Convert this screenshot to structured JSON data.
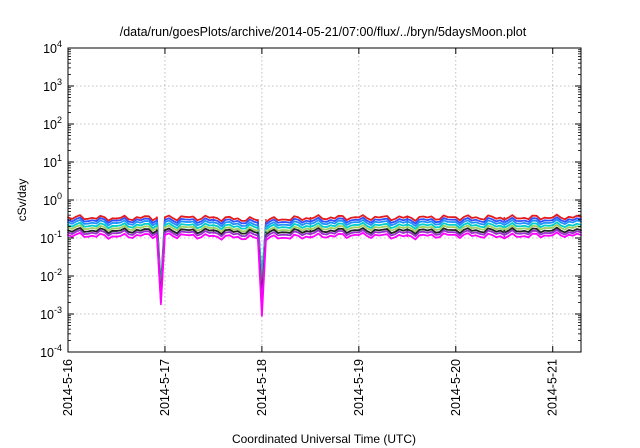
{
  "chart_data": {
    "type": "line",
    "title": "/data/run/goesPlots/archive/2014-05-21/07:00/flux/../bryn/5daysMoon.plot",
    "xlabel": "Coordinated Universal Time (UTC)",
    "ylabel": "cSv/day",
    "y_scale": "log",
    "ylim": [
      0.0001,
      10000
    ],
    "y_ticks": [
      {
        "value": 0.0001,
        "base": "10",
        "exp": "-4"
      },
      {
        "value": 0.001,
        "base": "10",
        "exp": "-3"
      },
      {
        "value": 0.01,
        "base": "10",
        "exp": "-2"
      },
      {
        "value": 0.1,
        "base": "10",
        "exp": "-1"
      },
      {
        "value": 1,
        "base": "10",
        "exp": "0"
      },
      {
        "value": 10,
        "base": "10",
        "exp": "1"
      },
      {
        "value": 100,
        "base": "10",
        "exp": "2"
      },
      {
        "value": 1000,
        "base": "10",
        "exp": "3"
      },
      {
        "value": 10000,
        "base": "10",
        "exp": "4"
      }
    ],
    "x_range_days": [
      "2014-05-16",
      "2014-05-21 07:00"
    ],
    "x_ticks": [
      "2014-5-16",
      "2014-5-17",
      "2014-5-18",
      "2014-5-19",
      "2014-5-20",
      "2014-5-21"
    ],
    "grid": true,
    "legend": "none",
    "x": [
      "2014-05-16 00:00",
      "2014-05-16 12:00",
      "2014-05-16 22:00",
      "2014-05-16 23:00",
      "2014-05-17 00:00",
      "2014-05-17 12:00",
      "2014-05-17 23:00",
      "2014-05-18 00:00",
      "2014-05-18 01:00",
      "2014-05-18 12:00",
      "2014-05-19 00:00",
      "2014-05-19 12:00",
      "2014-05-20 00:00",
      "2014-05-20 12:00",
      "2014-05-21 00:00",
      "2014-05-21 07:00"
    ],
    "series": [
      {
        "color": "#e41a1c",
        "values": [
          0.35,
          0.33,
          0.35,
          0.005,
          0.35,
          0.34,
          0.3,
          0.005,
          0.3,
          0.34,
          0.35,
          0.34,
          0.35,
          0.34,
          0.35,
          0.36
        ]
      },
      {
        "color": "#3050ff",
        "values": [
          0.3,
          0.29,
          0.3,
          0.0045,
          0.3,
          0.29,
          0.26,
          0.008,
          0.26,
          0.29,
          0.3,
          0.29,
          0.3,
          0.29,
          0.3,
          0.31
        ]
      },
      {
        "color": "#1e90ff",
        "values": [
          0.26,
          0.25,
          0.26,
          0.004,
          0.26,
          0.25,
          0.22,
          0.01,
          0.22,
          0.25,
          0.26,
          0.25,
          0.26,
          0.25,
          0.26,
          0.27
        ]
      },
      {
        "color": "#00cccc",
        "values": [
          0.22,
          0.21,
          0.22,
          0.0035,
          0.22,
          0.21,
          0.19,
          0.006,
          0.19,
          0.21,
          0.22,
          0.21,
          0.22,
          0.21,
          0.22,
          0.22
        ]
      },
      {
        "color": "#a0d060",
        "values": [
          0.19,
          0.18,
          0.19,
          0.003,
          0.19,
          0.18,
          0.16,
          0.004,
          0.16,
          0.18,
          0.19,
          0.18,
          0.19,
          0.18,
          0.19,
          0.19
        ]
      },
      {
        "color": "#222222",
        "values": [
          0.16,
          0.155,
          0.16,
          0.0025,
          0.16,
          0.155,
          0.14,
          0.003,
          0.14,
          0.155,
          0.16,
          0.155,
          0.16,
          0.155,
          0.16,
          0.16
        ]
      },
      {
        "color": "#9932cc",
        "values": [
          0.14,
          0.135,
          0.14,
          0.002,
          0.14,
          0.135,
          0.12,
          0.0018,
          0.12,
          0.135,
          0.14,
          0.135,
          0.14,
          0.135,
          0.14,
          0.14
        ]
      },
      {
        "color": "#ff00ff",
        "values": [
          0.12,
          0.11,
          0.12,
          0.0018,
          0.12,
          0.11,
          0.1,
          0.0009,
          0.1,
          0.11,
          0.12,
          0.11,
          0.12,
          0.11,
          0.12,
          0.12
        ]
      }
    ]
  }
}
